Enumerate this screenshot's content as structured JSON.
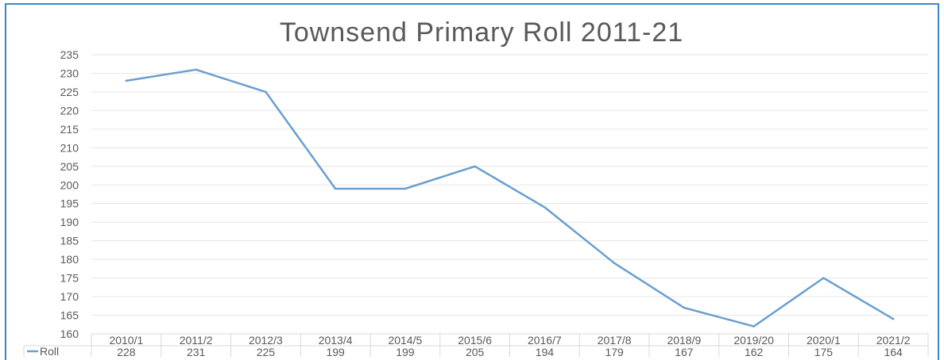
{
  "chart_data": {
    "type": "line",
    "title": "Townsend Primary Roll 2011-21",
    "xlabel": "",
    "ylabel": "",
    "categories": [
      "2010/1",
      "2011/2",
      "2012/3",
      "2013/4",
      "2014/5",
      "2015/6",
      "2016/7",
      "2017/8",
      "2018/9",
      "2019/20",
      "2020/1",
      "2021/2"
    ],
    "series": [
      {
        "name": "Roll",
        "values": [
          228,
          231,
          225,
          199,
          199,
          205,
          194,
          179,
          167,
          162,
          175,
          164
        ]
      }
    ],
    "yticks": [
      "160",
      "165",
      "170",
      "175",
      "180",
      "185",
      "190",
      "195",
      "200",
      "205",
      "210",
      "215",
      "220",
      "225",
      "230",
      "235"
    ],
    "ylim": [
      160,
      235
    ],
    "grid": true,
    "legend": "data-table",
    "colors": {
      "line": "#6a9fcf",
      "grid": "#e6e6e6",
      "table": "#d9d9d9",
      "border": "#3d86c6"
    }
  }
}
